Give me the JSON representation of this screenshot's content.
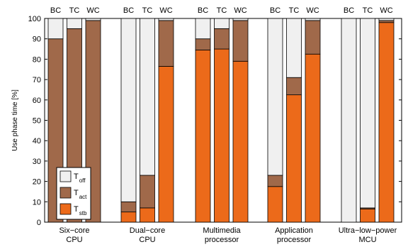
{
  "chart_data": {
    "type": "bar",
    "stacked": true,
    "ylabel": "Use phase time [%]",
    "ylim": [
      0,
      100
    ],
    "yticks": [
      0,
      10,
      20,
      30,
      40,
      50,
      60,
      70,
      80,
      90,
      100
    ],
    "grid": false,
    "legend_position": "bottom-left",
    "case_labels": [
      "BC",
      "TC",
      "WC"
    ],
    "legend": [
      {
        "key": "off",
        "base": "T",
        "sub": "off"
      },
      {
        "key": "act",
        "base": "T",
        "sub": "act"
      },
      {
        "key": "stb",
        "base": "T",
        "sub": "stb"
      }
    ],
    "colors": {
      "off": "#f0f0f0",
      "act": "#a0694a",
      "stb": "#ec6a1a",
      "outline": "#000000"
    },
    "groups": [
      {
        "line1": "Six−core",
        "line2": "CPU",
        "bars": [
          {
            "stb": 0,
            "act": 90,
            "off": 10
          },
          {
            "stb": 0,
            "act": 95,
            "off": 5
          },
          {
            "stb": 0,
            "act": 99,
            "off": 1
          }
        ]
      },
      {
        "line1": "Dual−core",
        "line2": "CPU",
        "bars": [
          {
            "stb": 5,
            "act": 5,
            "off": 90
          },
          {
            "stb": 7,
            "act": 16,
            "off": 77
          },
          {
            "stb": 76.5,
            "act": 22.5,
            "off": 1
          }
        ]
      },
      {
        "line1": "Multimedia",
        "line2": "processor",
        "bars": [
          {
            "stb": 84.5,
            "act": 5.5,
            "off": 10
          },
          {
            "stb": 85,
            "act": 10,
            "off": 5
          },
          {
            "stb": 79,
            "act": 20,
            "off": 1
          }
        ]
      },
      {
        "line1": "Application",
        "line2": "processor",
        "bars": [
          {
            "stb": 17.5,
            "act": 5.5,
            "off": 77
          },
          {
            "stb": 62.5,
            "act": 8.5,
            "off": 29
          },
          {
            "stb": 82.5,
            "act": 16.5,
            "off": 1
          }
        ]
      },
      {
        "line1": "Ultra−low−power",
        "line2": "MCU",
        "bars": [
          {
            "stb": 0,
            "act": 0,
            "off": 100
          },
          {
            "stb": 6.5,
            "act": 0.5,
            "off": 93
          },
          {
            "stb": 98,
            "act": 1,
            "off": 1
          }
        ]
      }
    ]
  }
}
